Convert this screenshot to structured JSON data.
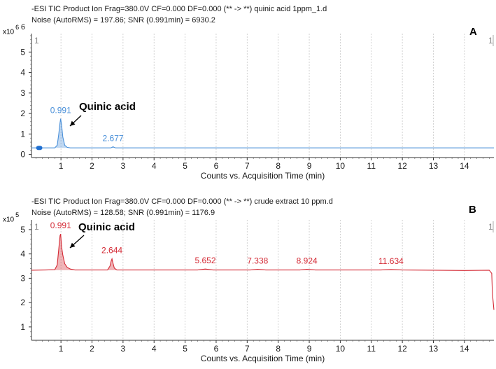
{
  "chart_data": [
    {
      "type": "line",
      "panel_label": "A",
      "header_line1": "-ESI TIC Product Ion Frag=380.0V CF=0.000 DF=0.000 (** -> **) quinic acid 1ppm_1.d",
      "header_line2": "Noise (AutoRMS) = 197.86; SNR (0.991min) = 6930.2",
      "y_multiplier_base": "x10",
      "y_multiplier_exp": "6",
      "xlabel": "Counts vs. Acquisition Time (min)",
      "xlim": [
        0.05,
        14.95
      ],
      "ylim": [
        -0.15,
        5.9
      ],
      "x_ticks": [
        1,
        2,
        3,
        4,
        5,
        6,
        7,
        8,
        9,
        10,
        11,
        12,
        13,
        14
      ],
      "y_ticks": [
        0,
        1,
        2,
        3,
        4,
        5
      ],
      "y_top_label": "6",
      "marker_label": "1",
      "baseline": 0.32,
      "series": [
        {
          "color": "#4a90d9",
          "x": [
            0.05,
            0.2,
            0.25,
            0.3,
            0.35,
            0.4,
            0.8,
            0.88,
            0.93,
            0.97,
            0.991,
            1.02,
            1.06,
            1.12,
            1.2,
            1.3,
            2.6,
            2.66,
            2.677,
            2.7,
            2.76,
            14.95
          ],
          "y": [
            0.32,
            0.32,
            0.36,
            0.36,
            0.36,
            0.32,
            0.32,
            0.45,
            1.0,
            1.55,
            1.75,
            1.45,
            0.85,
            0.45,
            0.35,
            0.32,
            0.32,
            0.36,
            0.38,
            0.36,
            0.32,
            0.32
          ]
        }
      ],
      "peak_labels": [
        {
          "x": 0.991,
          "y": 1.75,
          "text": "0.991"
        },
        {
          "x": 2.677,
          "y": 0.38,
          "text": "2.677"
        }
      ],
      "annotation": {
        "text": "Quinic acid",
        "x": 0.991,
        "y": 1.75
      }
    },
    {
      "type": "line",
      "panel_label": "B",
      "header_line1": "-ESI TIC Product Ion Frag=380.0V CF=0.000 DF=0.000 (** -> **) crude extract 10 ppm.d",
      "header_line2": "Noise (AutoRMS) = 128.58; SNR (0.991min) = 1176.9",
      "y_multiplier_base": "x10",
      "y_multiplier_exp": "5",
      "xlabel": "Counts vs. Acquisition Time (min)",
      "xlim": [
        0.05,
        14.95
      ],
      "ylim": [
        0.45,
        5.4
      ],
      "x_ticks": [
        1,
        2,
        3,
        4,
        5,
        6,
        7,
        8,
        9,
        10,
        11,
        12,
        13,
        14
      ],
      "y_ticks": [
        1,
        2,
        3,
        4,
        5
      ],
      "marker_label": "1",
      "baseline": 3.33,
      "series": [
        {
          "color": "#d42a35",
          "x": [
            0.05,
            0.5,
            0.8,
            0.88,
            0.93,
            0.97,
            0.991,
            1.02,
            1.06,
            1.12,
            1.2,
            1.3,
            1.45,
            2.5,
            2.58,
            2.62,
            2.644,
            2.67,
            2.72,
            2.8,
            5.4,
            5.652,
            5.9,
            7.1,
            7.338,
            7.6,
            8.7,
            8.924,
            9.2,
            11.3,
            11.634,
            12.0,
            14.0,
            14.8,
            14.88,
            14.9,
            14.95
          ],
          "y": [
            3.33,
            3.34,
            3.35,
            3.55,
            4.2,
            4.75,
            4.82,
            4.3,
            3.95,
            3.6,
            3.45,
            3.38,
            3.34,
            3.34,
            3.5,
            3.72,
            3.8,
            3.65,
            3.42,
            3.34,
            3.34,
            3.38,
            3.34,
            3.34,
            3.37,
            3.34,
            3.34,
            3.37,
            3.34,
            3.34,
            3.36,
            3.34,
            3.32,
            3.33,
            3.2,
            2.4,
            1.7
          ]
        }
      ],
      "peak_labels": [
        {
          "x": 0.991,
          "y": 4.82,
          "text": "0.991"
        },
        {
          "x": 2.644,
          "y": 3.8,
          "text": "2.644"
        },
        {
          "x": 5.652,
          "y": 3.38,
          "text": "5.652"
        },
        {
          "x": 7.338,
          "y": 3.37,
          "text": "7.338"
        },
        {
          "x": 8.924,
          "y": 3.37,
          "text": "8.924"
        },
        {
          "x": 11.634,
          "y": 3.36,
          "text": "11.634"
        }
      ],
      "annotation": {
        "text": "Quinic acid",
        "x": 0.991,
        "y": 4.82
      }
    }
  ]
}
